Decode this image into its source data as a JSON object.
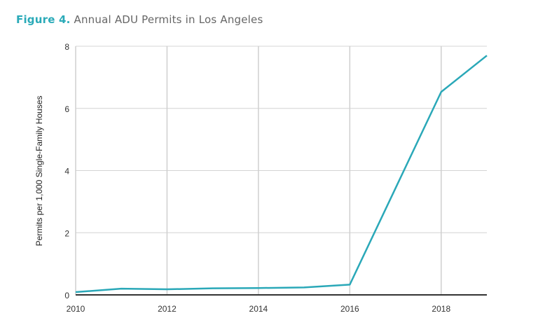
{
  "chart_data": {
    "type": "line",
    "title_prefix": "Figure 4.",
    "title": "Annual ADU Permits in Los Angeles",
    "xlabel": "",
    "ylabel": "Permits per 1,000 Single-Family Houses",
    "xlim": [
      2010,
      2019
    ],
    "ylim": [
      0,
      8
    ],
    "x_ticks": [
      2010,
      2012,
      2014,
      2016,
      2018
    ],
    "y_ticks": [
      0,
      2,
      4,
      6,
      8
    ],
    "grid": true,
    "series": [
      {
        "name": "ADU permits",
        "color": "#2aa8b8",
        "x": [
          2010,
          2011,
          2012,
          2013,
          2014,
          2015,
          2016,
          2017,
          2018,
          2019
        ],
        "y": [
          0.09,
          0.2,
          0.18,
          0.21,
          0.22,
          0.24,
          0.33,
          3.43,
          6.53,
          7.7
        ]
      }
    ]
  }
}
